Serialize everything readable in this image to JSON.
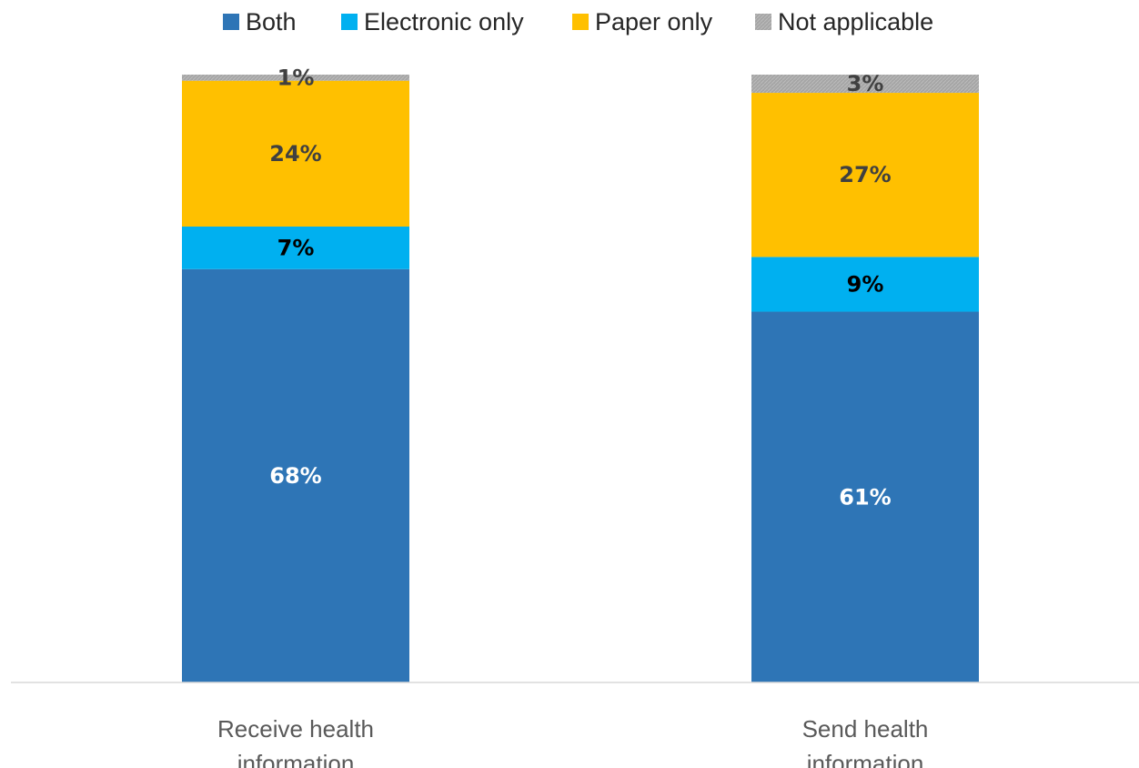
{
  "chart_data": {
    "type": "bar",
    "stacked": true,
    "normalized_percent": true,
    "categories": [
      [
        "Receive health",
        "information"
      ],
      [
        "Send health",
        "information"
      ]
    ],
    "series": [
      {
        "name": "Both",
        "color": "#2E75B6",
        "label_color": "#ffffff",
        "values": [
          68,
          61
        ],
        "labels": [
          "68%",
          "61%"
        ]
      },
      {
        "name": "Electronic only",
        "color": "#00B0F0",
        "label_color": "#000000",
        "values": [
          7,
          9
        ],
        "labels": [
          "7%",
          "9%"
        ]
      },
      {
        "name": "Paper only",
        "color": "#FFC000",
        "label_color": "#404040",
        "values": [
          24,
          27
        ],
        "labels": [
          "24%",
          "27%"
        ]
      },
      {
        "name": "Not applicable",
        "color": "#A5A5A5",
        "label_color": "#404040",
        "values": [
          1,
          3
        ],
        "labels": [
          "1%",
          "3%"
        ]
      }
    ],
    "ylim": [
      0,
      100
    ],
    "grid": false,
    "legend_position": "top"
  }
}
